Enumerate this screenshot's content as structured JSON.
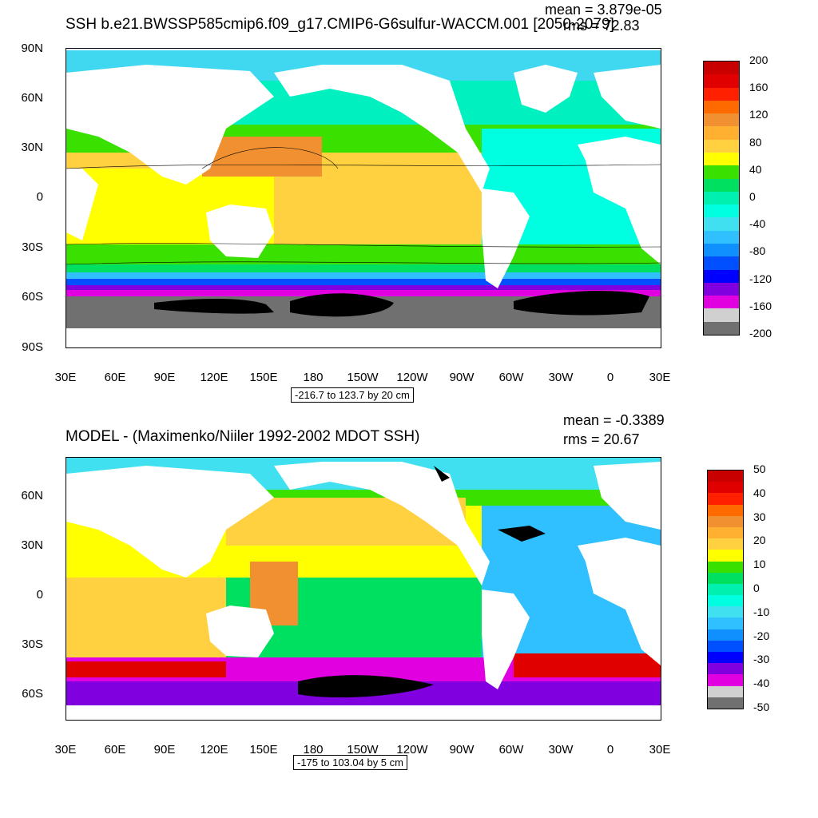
{
  "panels": [
    {
      "title": "SSH b.e21.BWSSP585cmip6.f09_g17.CMIP6-G6sulfur-WACCM.001 [2050-2079]",
      "mean": "mean = 3.879e-05",
      "rms": "rms = 72.83",
      "range": "-216.7 to 123.7 by 20 cm",
      "lat_labels": [
        "90N",
        "60N",
        "30N",
        "0",
        "30S",
        "60S",
        "90S"
      ],
      "lon_labels": [
        "30E",
        "60E",
        "90E",
        "120E",
        "150E",
        "180",
        "150W",
        "120W",
        "90W",
        "60W",
        "30W",
        "0",
        "30E"
      ],
      "colorbar": {
        "labels": [
          "200",
          "160",
          "120",
          "80",
          "40",
          "0",
          "-40",
          "-80",
          "-120",
          "-160",
          "-200"
        ],
        "colors": [
          "#c80000",
          "#e00000",
          "#ff2000",
          "#ff6a00",
          "#f09030",
          "#ffb030",
          "#ffd040",
          "#ffff00",
          "#39e000",
          "#00e060",
          "#00f0b0",
          "#00ffe0",
          "#40e0f0",
          "#30c0ff",
          "#1090ff",
          "#0050ff",
          "#0000ff",
          "#8000e0",
          "#e000e0",
          "#d0d0d0",
          "#707070"
        ]
      }
    },
    {
      "title": "MODEL - (Maximenko/Niiler 1992-2002 MDOT SSH)",
      "mean": "mean = -0.3389",
      "rms": "rms = 20.67",
      "range": "-175 to 103.04 by 5 cm",
      "lat_labels": [
        "60N",
        "30N",
        "0",
        "30S",
        "60S"
      ],
      "lon_labels": [
        "30E",
        "60E",
        "90E",
        "120E",
        "150E",
        "180",
        "150W",
        "120W",
        "90W",
        "60W",
        "30W",
        "0",
        "30E"
      ],
      "colorbar": {
        "labels": [
          "50",
          "40",
          "30",
          "20",
          "10",
          "0",
          "-10",
          "-20",
          "-30",
          "-40",
          "-50"
        ],
        "colors": [
          "#c80000",
          "#e00000",
          "#ff2000",
          "#ff6a00",
          "#f09030",
          "#ffb030",
          "#ffd040",
          "#ffff00",
          "#39e000",
          "#00e060",
          "#00f0b0",
          "#00ffe0",
          "#40e0f0",
          "#30c0ff",
          "#1090ff",
          "#0050ff",
          "#0000ff",
          "#8000e0",
          "#e000e0",
          "#d0d0d0",
          "#707070"
        ]
      }
    }
  ]
}
